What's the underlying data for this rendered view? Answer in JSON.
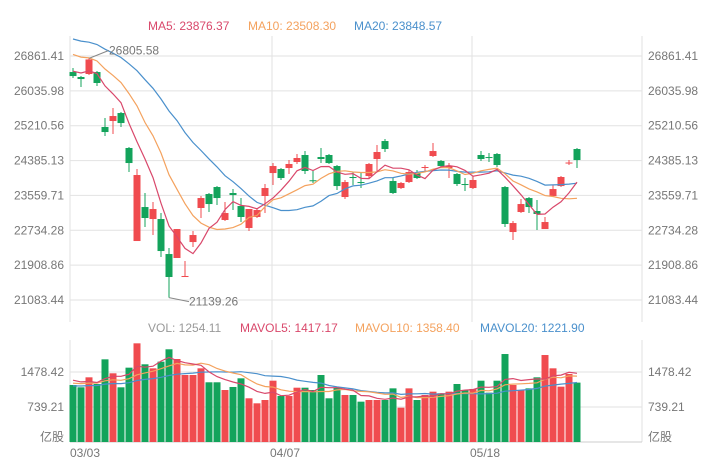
{
  "colors": {
    "up": "#f04b4f",
    "down": "#13a35b",
    "ma5": "#d9486b",
    "ma10": "#f4a25e",
    "ma20": "#4a90cc",
    "grid": "#e2e2e2",
    "text": "#777777"
  },
  "legend_main": {
    "ma5": "MA5: 23876.37",
    "ma10": "MA10: 23508.30",
    "ma20": "MA20: 23848.57"
  },
  "legend_vol": {
    "vol": "VOL: 1254.11",
    "mavol5": "MAVOL5: 1417.17",
    "mavol10": "MAVOL10: 1358.40",
    "mavol20": "MAVOL20: 1221.90"
  },
  "chart_data": [
    {
      "type": "candlestick",
      "title": "",
      "price_ticks": [
        "26861.41",
        "26035.98",
        "25210.56",
        "24385.13",
        "23559.71",
        "22734.28",
        "21908.86",
        "21083.44"
      ],
      "ylim": [
        21083.44,
        26861.41
      ],
      "x_tick_labels": [
        {
          "index": 0,
          "label": "03/03"
        },
        {
          "index": 25,
          "label": "04/07"
        },
        {
          "index": 50,
          "label": "05/18"
        }
      ],
      "annotations": {
        "max": "26805.58",
        "min": "21139.26"
      },
      "ma_start": {
        "ma5": 26530,
        "ma10": 26956,
        "ma20": 27311
      },
      "ohlc": [
        [
          26482,
          26577,
          26340,
          26387
        ],
        [
          26364,
          26387,
          26127,
          26316
        ],
        [
          26435,
          26805.58,
          26411,
          26780
        ],
        [
          26482,
          26506,
          26151,
          26222
        ],
        [
          25180,
          25393,
          24967,
          25061
        ],
        [
          25322,
          25630,
          25014,
          25440
        ],
        [
          25511,
          25535,
          25180,
          25274
        ],
        [
          24683,
          24706,
          24114,
          24327
        ],
        [
          22480,
          24185,
          22480,
          24043
        ],
        [
          23285,
          23617,
          22812,
          23025
        ],
        [
          23001,
          23404,
          22622,
          23238
        ],
        [
          23001,
          23143,
          22101,
          22243
        ],
        [
          22172,
          22315,
          21139.26,
          21628
        ],
        [
          22078,
          22764,
          22078,
          22764
        ],
        [
          21628,
          22007,
          21628,
          21652
        ],
        [
          22456,
          22717,
          22338,
          22622
        ],
        [
          23262,
          23546,
          23025,
          23498
        ],
        [
          23593,
          23617,
          23167,
          23356
        ],
        [
          23759,
          23782,
          23333,
          23498
        ],
        [
          22978,
          23404,
          22954,
          23143
        ],
        [
          23617,
          23711,
          23214,
          23569
        ],
        [
          23309,
          23498,
          22930,
          23049
        ],
        [
          22788,
          23238,
          22717,
          23238
        ],
        [
          23049,
          23262,
          23025,
          23214
        ],
        [
          23546,
          23830,
          23143,
          23735
        ],
        [
          24090,
          24327,
          23806,
          24256
        ],
        [
          24185,
          24209,
          23925,
          23972
        ],
        [
          24209,
          24398,
          24067,
          24304
        ],
        [
          24351,
          24541,
          24304,
          24446
        ],
        [
          24517,
          24611,
          24067,
          24138
        ],
        [
          23919,
          24161,
          23854,
          23896
        ],
        [
          24469,
          24683,
          24327,
          24422
        ],
        [
          24517,
          24541,
          24304,
          24327
        ],
        [
          24256,
          24280,
          23688,
          23782
        ],
        [
          23522,
          23925,
          23475,
          23877
        ],
        [
          23996,
          24114,
          23806,
          23972
        ],
        [
          23877,
          24090,
          23735,
          23854
        ],
        [
          24019,
          24327,
          23972,
          24304
        ],
        [
          24422,
          24753,
          24138,
          24588
        ],
        [
          24848,
          24896,
          24588,
          24659
        ],
        [
          23901,
          23972,
          23593,
          23617
        ],
        [
          23735,
          23877,
          23711,
          23854
        ],
        [
          23877,
          24161,
          23854,
          24114
        ],
        [
          24090,
          24161,
          23948,
          23972
        ],
        [
          24209,
          24280,
          24138,
          24233
        ],
        [
          24493,
          24801,
          24469,
          24611
        ],
        [
          24375,
          24398,
          24209,
          24256
        ],
        [
          24209,
          24327,
          23972,
          24256
        ],
        [
          24067,
          24090,
          23782,
          23830
        ],
        [
          23830,
          23972,
          23664,
          23806
        ],
        [
          23735,
          24019,
          23711,
          23925
        ],
        [
          24517,
          24611,
          24375,
          24422
        ],
        [
          24469,
          24564,
          24351,
          24446
        ],
        [
          24541,
          24564,
          24233,
          24280
        ],
        [
          23759,
          23782,
          22812,
          22883
        ],
        [
          22693,
          22954,
          22504,
          22906
        ],
        [
          23167,
          23475,
          23143,
          23356
        ],
        [
          23498,
          23522,
          23143,
          23285
        ],
        [
          23191,
          23451,
          22741,
          23120
        ],
        [
          22764,
          23049,
          22764,
          22930
        ],
        [
          23546,
          23806,
          23522,
          23711
        ],
        [
          23782,
          24019,
          23759,
          23996
        ],
        [
          24315,
          24398,
          24280,
          24339
        ],
        [
          24659,
          24683,
          24209,
          24398
        ]
      ]
    },
    {
      "type": "bar",
      "title": "VOL",
      "unit_label": "亿股",
      "vol_ticks": [
        "1478.42",
        "739.21"
      ],
      "ylim": [
        0,
        2217.63
      ],
      "mavol_start": {
        "mavol5": 1330,
        "mavol10": 1246,
        "mavol20": 1183
      },
      "values": [
        1204,
        1155,
        1366,
        1225,
        1746,
        1451,
        1155,
        1570,
        2084,
        1641,
        1556,
        1697,
        1958,
        1753,
        1415,
        1415,
        1556,
        1261,
        1261,
        1098,
        1162,
        1345,
        923,
        817,
        887,
        1295,
        972,
        972,
        1147,
        1147,
        1098,
        1415,
        923,
        1147,
        993,
        993,
        852,
        887,
        887,
        887,
        1133,
        725,
        1133,
        887,
        993,
        1063,
        1028,
        1063,
        1225,
        1098,
        1120,
        1295,
        1042,
        1295,
        1858,
        1204,
        1098,
        1133,
        1366,
        1837,
        1556,
        1169,
        1436,
        1254.11
      ]
    }
  ]
}
